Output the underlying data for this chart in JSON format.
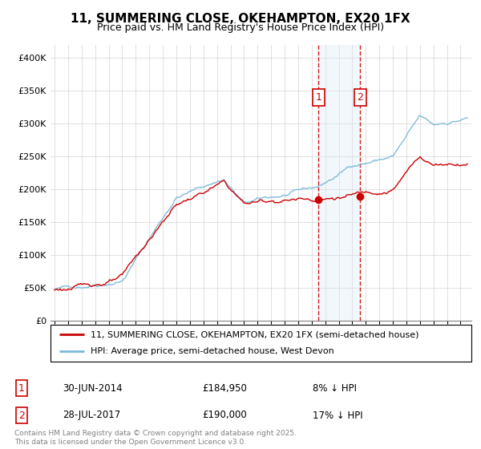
{
  "title": "11, SUMMERING CLOSE, OKEHAMPTON, EX20 1FX",
  "subtitle": "Price paid vs. HM Land Registry's House Price Index (HPI)",
  "hpi_label": "HPI: Average price, semi-detached house, West Devon",
  "property_label": "11, SUMMERING CLOSE, OKEHAMPTON, EX20 1FX (semi-detached house)",
  "sale1_date": "30-JUN-2014",
  "sale1_price": "£184,950",
  "sale1_hpi": "8% ↓ HPI",
  "sale2_date": "28-JUL-2017",
  "sale2_price": "£190,000",
  "sale2_hpi": "17% ↓ HPI",
  "footnote": "Contains HM Land Registry data © Crown copyright and database right 2025.\nThis data is licensed under the Open Government Licence v3.0.",
  "hpi_color": "#7ab8d9",
  "property_color": "#cc0000",
  "shade_color": "#daeaf5",
  "vline_color": "#cc0000",
  "ylim": [
    0,
    420000
  ],
  "yticks": [
    0,
    50000,
    100000,
    150000,
    200000,
    250000,
    300000,
    350000,
    400000
  ],
  "sale1_x": 2014.5,
  "sale2_x": 2017.58,
  "sale1_price_val": 184950,
  "sale2_price_val": 190000,
  "xlim_left": 1994.7,
  "xlim_right": 2025.8
}
